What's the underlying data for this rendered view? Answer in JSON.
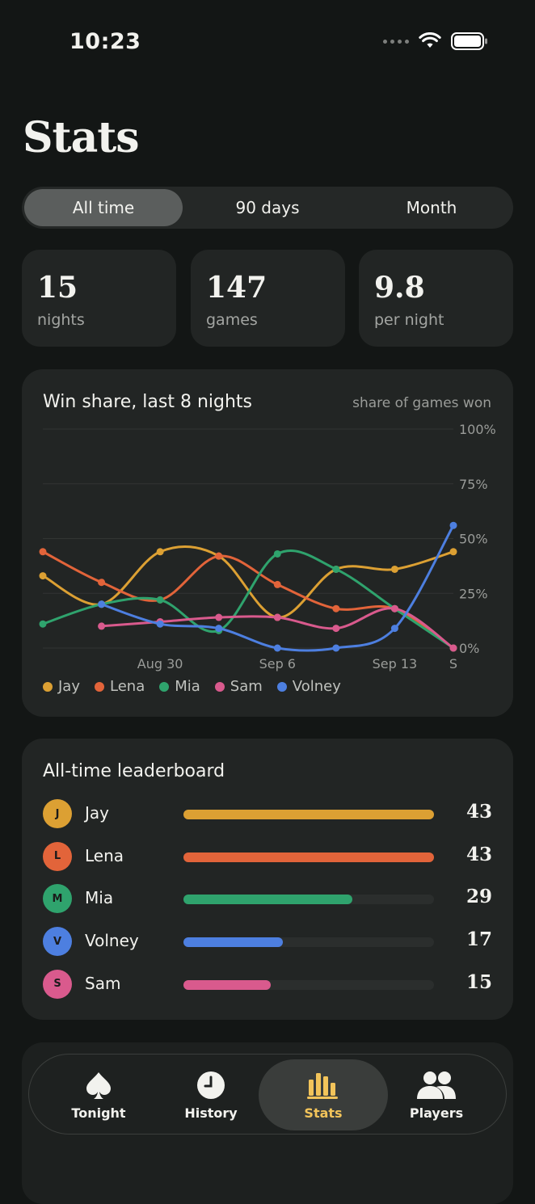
{
  "status_bar": {
    "time": "10:23"
  },
  "page": {
    "title": "Stats"
  },
  "range_tabs": [
    {
      "label": "All time",
      "active": true
    },
    {
      "label": "90 days",
      "active": false
    },
    {
      "label": "Month",
      "active": false
    }
  ],
  "summary": [
    {
      "value": "15",
      "label": "nights"
    },
    {
      "value": "147",
      "label": "games"
    },
    {
      "value": "9.8",
      "label": "per night"
    }
  ],
  "win_share": {
    "title": "Win share, last 8 nights",
    "subtitle": "share of games won"
  },
  "chart_data": {
    "type": "line",
    "title": "Win share, last 8 nights",
    "subtitle": "share of games won",
    "x": [
      "",
      "",
      "Aug 30",
      "",
      "Sep 6",
      "",
      "Sep 13",
      "S"
    ],
    "x_tick_labels": [
      "Aug 30",
      "Sep 6",
      "Sep 13",
      "S"
    ],
    "y_tick_labels": [
      "100%",
      "75%",
      "50%",
      "25%",
      "0%"
    ],
    "ylim": [
      0,
      100
    ],
    "y_unit": "%",
    "grid": true,
    "legend_position": "bottom-left",
    "series": [
      {
        "name": "Jay",
        "color": "#dca033",
        "values": [
          33,
          20,
          44,
          42,
          14,
          36,
          36,
          44
        ]
      },
      {
        "name": "Lena",
        "color": "#e2643a",
        "values": [
          44,
          30,
          22,
          42,
          29,
          18,
          18,
          0
        ]
      },
      {
        "name": "Mia",
        "color": "#2fa36d",
        "values": [
          11,
          20,
          22,
          8,
          43,
          36,
          18,
          0
        ]
      },
      {
        "name": "Sam",
        "color": "#d95a8d",
        "values": [
          null,
          10,
          12,
          14,
          14,
          9,
          18,
          0
        ]
      },
      {
        "name": "Volney",
        "color": "#4d7fe0",
        "values": [
          null,
          20,
          11,
          9,
          0,
          0,
          9,
          56
        ]
      }
    ]
  },
  "leaderboard": {
    "title": "All-time leaderboard",
    "max": 43,
    "rows": [
      {
        "initial": "J",
        "name": "Jay",
        "value": "43",
        "score": 43,
        "color": "#dca033"
      },
      {
        "initial": "L",
        "name": "Lena",
        "value": "43",
        "score": 43,
        "color": "#e2643a"
      },
      {
        "initial": "M",
        "name": "Mia",
        "value": "29",
        "score": 29,
        "color": "#2fa36d"
      },
      {
        "initial": "V",
        "name": "Volney",
        "value": "17",
        "score": 17,
        "color": "#4d7fe0"
      },
      {
        "initial": "S",
        "name": "Sam",
        "value": "15",
        "score": 15,
        "color": "#d95a8d"
      }
    ]
  },
  "tab_bar": [
    {
      "label": "Tonight",
      "icon": "spade-icon",
      "active": false
    },
    {
      "label": "History",
      "icon": "clock-icon",
      "active": false
    },
    {
      "label": "Stats",
      "icon": "bar-chart-icon",
      "active": true
    },
    {
      "label": "Players",
      "icon": "players-icon",
      "active": false
    }
  ]
}
